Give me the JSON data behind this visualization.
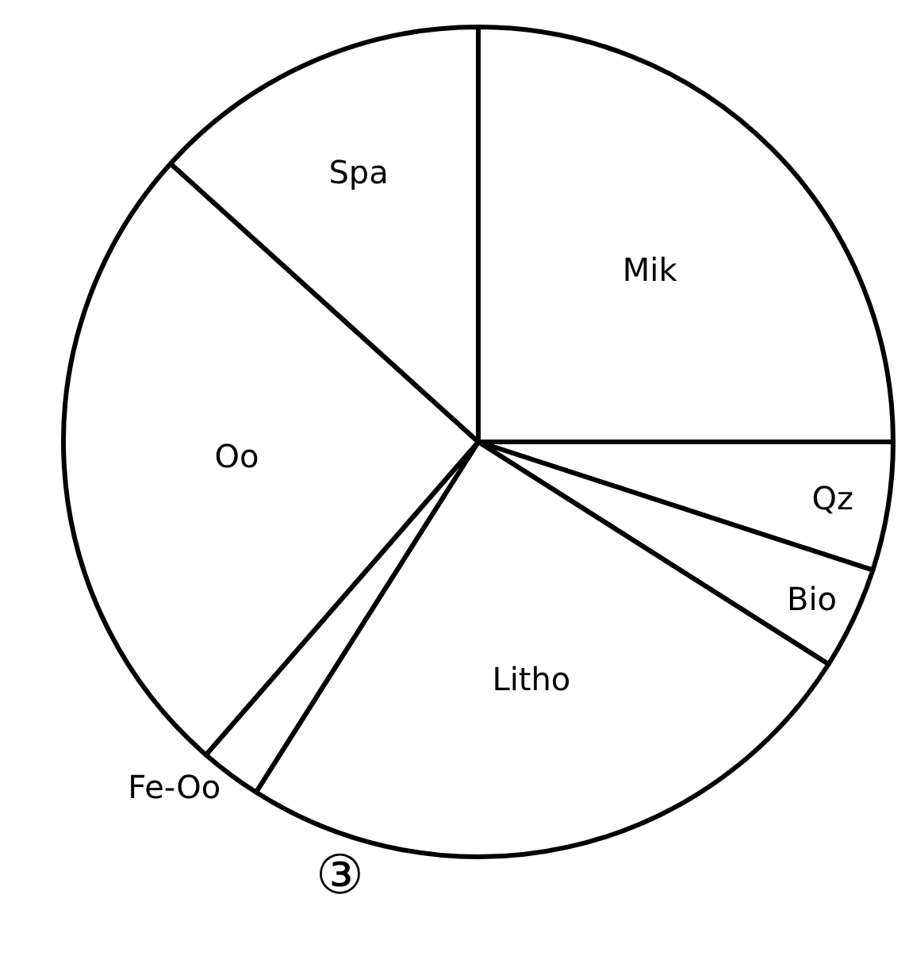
{
  "chart_data": {
    "type": "pie",
    "categories": [
      "Mik",
      "Qz",
      "Bio",
      "Litho",
      "Fe-Oo",
      "Oo",
      "Spa"
    ],
    "values": [
      25,
      5,
      4,
      25,
      2.4,
      25.3,
      13.3
    ],
    "colors": [
      "#ffffff",
      "#ffffff",
      "#ffffff",
      "#ffffff",
      "#ffffff",
      "#ffffff",
      "#ffffff"
    ],
    "annotations": [
      "③"
    ]
  }
}
